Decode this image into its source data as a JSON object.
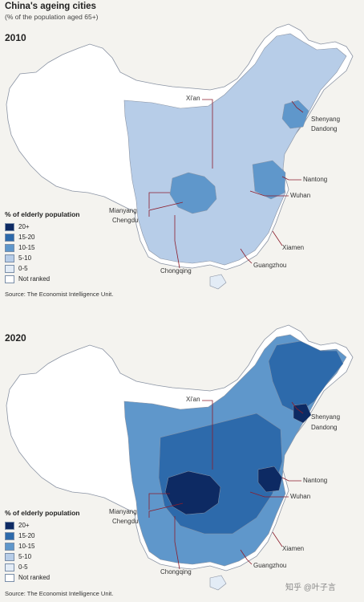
{
  "header": {
    "title": "China's ageing cities",
    "subtitle": "(% of the population aged 65+)"
  },
  "colors": {
    "c20plus": "#0d2a63",
    "c15_20": "#2d6aab",
    "c10_15": "#5f97cb",
    "c5_10": "#b7cde8",
    "c0_5": "#e3ecf6",
    "not_ranked": "#ffffff",
    "leader": "#8c1d2c"
  },
  "legend": {
    "title": "% of elderly population",
    "items": [
      {
        "label": "20+",
        "key": "c20plus"
      },
      {
        "label": "15-20",
        "key": "c15_20"
      },
      {
        "label": "10-15",
        "key": "c10_15"
      },
      {
        "label": "5-10",
        "key": "c5_10"
      },
      {
        "label": "0-5",
        "key": "c0_5"
      },
      {
        "label": "Not ranked",
        "key": "not_ranked"
      }
    ]
  },
  "maps": [
    {
      "year": "2010",
      "source": "Source: The Economist Intelligence Unit.",
      "cities": {
        "xian": "Xi'an",
        "shenyang": "Shenyang",
        "dandong": "Dandong",
        "nantong": "Nantong",
        "wuhan": "Wuhan",
        "mianyang": "Mianyang",
        "chengdu": "Chengdu",
        "xiamen": "Xiamen",
        "chongqing": "Chongqing",
        "guangzhou": "Guangzhou"
      }
    },
    {
      "year": "2020",
      "source": "Source: The Economist Intelligence Unit.",
      "cities": {
        "xian": "Xi'an",
        "shenyang": "Shenyang",
        "dandong": "Dandong",
        "nantong": "Nantong",
        "wuhan": "Wuhan",
        "mianyang": "Mianyang",
        "chengdu": "Chengdu",
        "xiamen": "Xiamen",
        "chongqing": "Chongqing",
        "guangzhou": "Guangzhou"
      }
    }
  ],
  "watermark": "知乎 @叶子言"
}
